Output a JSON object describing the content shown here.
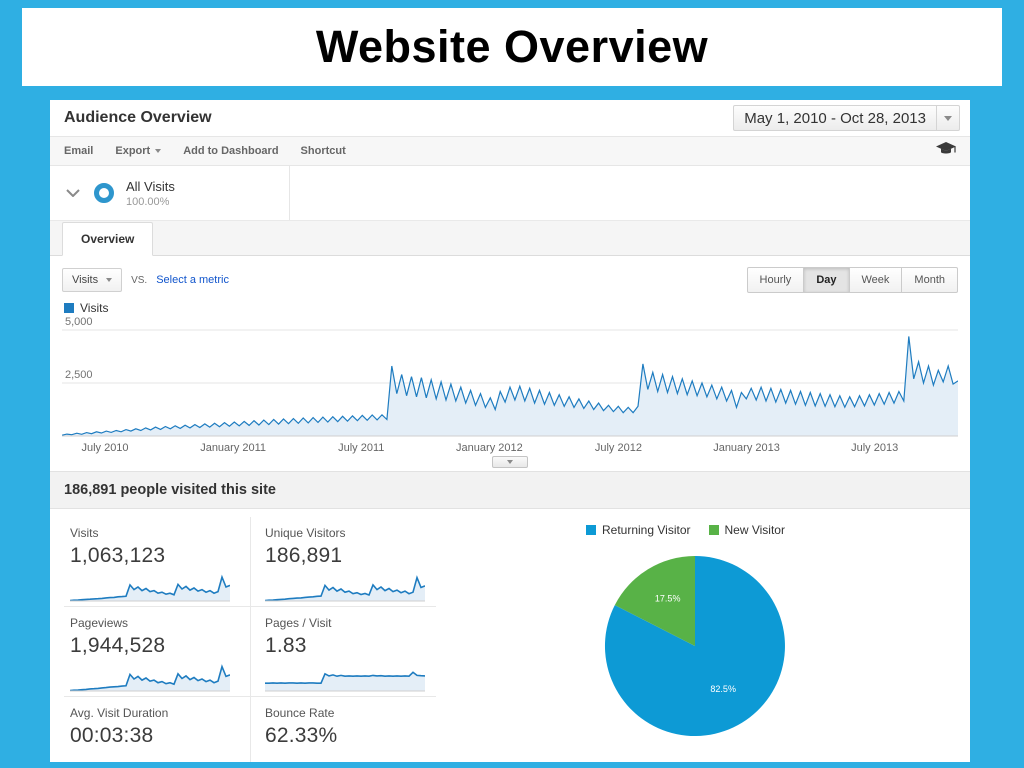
{
  "slide": {
    "title": "Website Overview"
  },
  "colors": {
    "slide_background": "#2fafe3",
    "chart_line": "#1e7cc0",
    "chart_fill": "#e4eef7",
    "pie_blue": "#0d9ad5",
    "pie_green": "#58b247",
    "link_blue": "#1155cc"
  },
  "ga": {
    "header": {
      "title": "Audience Overview",
      "date_range": "May 1, 2010 - Oct 28, 2013"
    },
    "toolbar": {
      "email": "Email",
      "export": "Export",
      "add_to_dashboard": "Add to Dashboard",
      "shortcut": "Shortcut"
    },
    "segment": {
      "name": "All Visits",
      "percent": "100.00%"
    },
    "tabs": {
      "overview": "Overview"
    },
    "controls": {
      "metric_selector": "Visits",
      "vs_label": "vs.",
      "select_metric_link": "Select a metric",
      "granularity": [
        "Hourly",
        "Day",
        "Week",
        "Month"
      ],
      "active_granularity": "Day"
    },
    "chart_legend": "Visits",
    "summary": "186,891 people visited this site",
    "metrics": [
      {
        "label": "Visits",
        "value": "1,063,123",
        "spark": [
          2,
          3,
          4,
          5,
          6,
          7,
          8,
          9,
          10,
          12,
          13,
          14,
          16,
          17,
          18,
          62,
          44,
          54,
          40,
          48,
          36,
          40,
          30,
          34,
          26,
          30,
          24,
          64,
          46,
          56,
          42,
          50,
          38,
          44,
          34,
          40,
          30,
          36,
          92,
          54,
          60
        ]
      },
      {
        "label": "Unique Visitors",
        "value": "186,891",
        "spark": [
          2,
          3,
          4,
          5,
          6,
          7,
          9,
          10,
          11,
          12,
          14,
          15,
          16,
          18,
          19,
          60,
          42,
          52,
          38,
          46,
          34,
          38,
          28,
          32,
          25,
          29,
          23,
          62,
          44,
          54,
          40,
          48,
          36,
          42,
          32,
          38,
          28,
          34,
          90,
          52,
          58
        ]
      },
      {
        "label": "Pageviews",
        "value": "1,944,528",
        "spark": [
          2,
          3,
          4,
          5,
          6,
          8,
          9,
          10,
          12,
          13,
          15,
          16,
          17,
          19,
          20,
          64,
          46,
          56,
          42,
          50,
          38,
          42,
          32,
          36,
          28,
          32,
          26,
          66,
          48,
          58,
          44,
          52,
          40,
          46,
          36,
          42,
          32,
          38,
          94,
          56,
          62
        ]
      },
      {
        "label": "Pages / Visit",
        "value": "1.83",
        "spark": [
          30,
          30,
          31,
          30,
          31,
          30,
          31,
          31,
          30,
          31,
          30,
          31,
          31,
          30,
          30,
          66,
          58,
          62,
          57,
          60,
          57,
          58,
          57,
          58,
          57,
          58,
          57,
          60,
          58,
          59,
          57,
          58,
          57,
          58,
          57,
          58,
          57,
          72,
          60,
          59,
          58
        ]
      },
      {
        "label": "Avg. Visit Duration",
        "value": "00:03:38"
      },
      {
        "label": "Bounce Rate",
        "value": "62.33%"
      }
    ],
    "pie_legend": [
      {
        "label": "Returning Visitor"
      },
      {
        "label": "New Visitor"
      }
    ]
  },
  "chart_data": [
    {
      "type": "area",
      "name": "Visits over time",
      "x_range": "May 1, 2010 - Oct 28, 2013",
      "x_axis_labels": [
        "July 2010",
        "January 2011",
        "July 2011",
        "January 2012",
        "July 2012",
        "January 2013",
        "July 2013"
      ],
      "x_label_fractions": [
        4.8,
        19.1,
        33.4,
        47.7,
        62.1,
        76.4,
        90.7
      ],
      "y_ticks": [
        "5,000",
        "2,500"
      ],
      "ylim": [
        0,
        5000
      ],
      "grid": true,
      "series": [
        {
          "name": "Visits",
          "values": [
            40,
            90,
            60,
            130,
            80,
            160,
            110,
            200,
            140,
            230,
            170,
            260,
            200,
            300,
            230,
            340,
            260,
            380,
            290,
            420,
            310,
            450,
            340,
            480,
            360,
            510,
            380,
            540,
            400,
            570,
            420,
            600,
            440,
            630,
            460,
            660,
            480,
            690,
            500,
            720,
            520,
            750,
            540,
            780,
            560,
            800,
            580,
            820,
            600,
            850,
            620,
            870,
            640,
            890,
            660,
            910,
            680,
            930,
            700,
            950,
            720,
            970,
            740,
            990,
            760,
            1000,
            780,
            3300,
            2000,
            2900,
            1900,
            2800,
            1850,
            2750,
            1800,
            2650,
            1750,
            2550,
            1700,
            2450,
            1650,
            2300,
            1550,
            2150,
            1450,
            2000,
            1350,
            1800,
            1250,
            2100,
            1600,
            2300,
            1700,
            2350,
            1650,
            2250,
            1550,
            2150,
            1500,
            2050,
            1450,
            1950,
            1400,
            1850,
            1350,
            1750,
            1300,
            1650,
            1250,
            1550,
            1200,
            1450,
            1150,
            1400,
            1100,
            1350,
            1100,
            1400,
            3400,
            2200,
            3000,
            2100,
            2900,
            2050,
            2800,
            2000,
            2700,
            1950,
            2600,
            1900,
            2500,
            1850,
            2400,
            1750,
            2300,
            1650,
            2150,
            1350,
            2050,
            1750,
            2250,
            1700,
            2300,
            1650,
            2250,
            1600,
            2200,
            1550,
            2150,
            1500,
            2100,
            1450,
            2050,
            1420,
            2000,
            1400,
            1950,
            1380,
            1900,
            1360,
            1850,
            1380,
            1900,
            1420,
            1950,
            1460,
            2000,
            1500,
            2050,
            1550,
            2100,
            1650,
            4700,
            2700,
            3500,
            2500,
            3300,
            2400,
            3100,
            2550,
            3300,
            2450,
            2600
          ]
        }
      ]
    },
    {
      "type": "pie",
      "name": "Visitor type share",
      "legend_position": "top",
      "slices": [
        {
          "label": "Returning Visitor",
          "value": 82.5,
          "display": "82.5%"
        },
        {
          "label": "New Visitor",
          "value": 17.5,
          "display": "17.5%"
        }
      ]
    }
  ]
}
